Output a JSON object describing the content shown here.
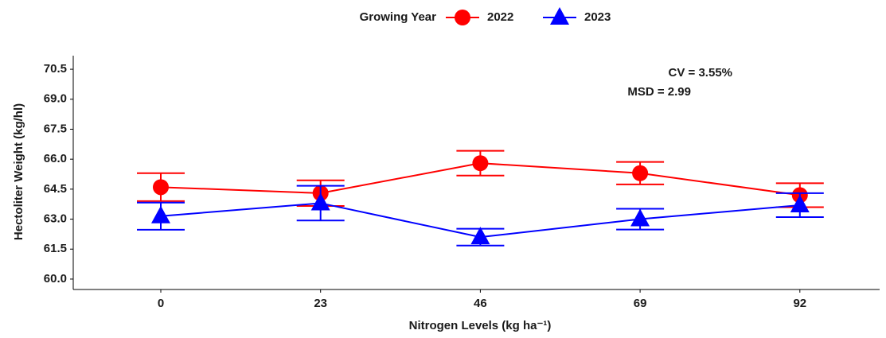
{
  "chart_data": {
    "type": "line",
    "legend_title": "Growing Year",
    "x_label": "Nitrogen Levels (kg ha⁻¹)",
    "y_label": "Hectoliter Weight (kg/hl)",
    "annotations": [
      "CV = 3.55%",
      "MSD = 2.99"
    ],
    "categories": [
      "0",
      "23",
      "46",
      "69",
      "92"
    ],
    "series": [
      {
        "name": "2022",
        "color": "#ff0000",
        "marker": "circle",
        "values": [
          64.6,
          64.3,
          65.8,
          65.3,
          64.2
        ],
        "errors": [
          0.7,
          0.64,
          0.62,
          0.56,
          0.6
        ]
      },
      {
        "name": "2023",
        "color": "#0000ff",
        "marker": "triangle",
        "values": [
          63.15,
          63.8,
          62.1,
          63.0,
          63.7
        ],
        "errors": [
          0.68,
          0.87,
          0.42,
          0.52,
          0.6
        ]
      }
    ],
    "ylim": [
      59.48,
      71.18
    ],
    "yticks": [
      {
        "value": 60,
        "label": "60.0"
      },
      61.5,
      {
        "value": 63,
        "label": "63.0"
      },
      64.5,
      {
        "value": 66,
        "label": "66.0"
      },
      67.5,
      {
        "value": 69,
        "label": "69.0"
      },
      70.5
    ],
    "grid": false
  }
}
